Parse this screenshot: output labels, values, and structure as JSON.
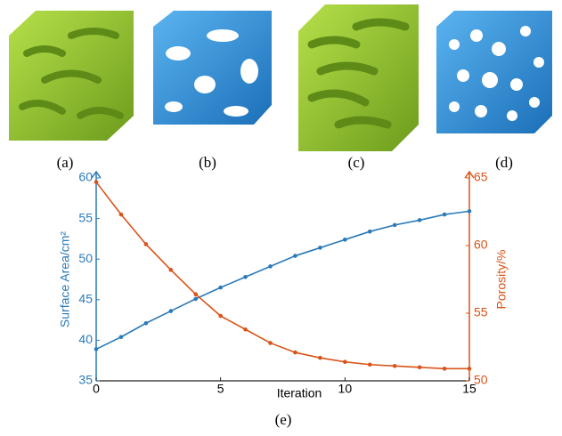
{
  "panels": [
    {
      "label": "(a)"
    },
    {
      "label": "(b)"
    },
    {
      "label": "(c)"
    },
    {
      "label": "(d)"
    }
  ],
  "caption": "(e)",
  "chart_data": {
    "type": "line",
    "x_label": "Iteration",
    "y_label": "Surface Area/cm²",
    "y2_label": "Porosity/%",
    "x": [
      0,
      1,
      2,
      3,
      4,
      5,
      6,
      7,
      8,
      9,
      10,
      11,
      12,
      13,
      14,
      15
    ],
    "series": [
      {
        "color": "#2a7ab9",
        "values": [
          38.9,
          40.4,
          42.1,
          43.6,
          45.1,
          46.5,
          47.8,
          49.1,
          50.4,
          51.4,
          52.4,
          53.4,
          54.2,
          54.8,
          55.5,
          55.9
        ]
      },
      {
        "color": "#d9541a",
        "axis": "y2",
        "values": [
          64.7,
          62.3,
          60.1,
          58.2,
          56.4,
          54.8,
          53.8,
          52.8,
          52.1,
          51.7,
          51.4,
          51.2,
          51.1,
          51.0,
          50.9,
          50.9
        ]
      }
    ],
    "xlim": [
      0,
      15
    ],
    "xticks": [
      0,
      5,
      10,
      15
    ],
    "ylim": [
      35,
      60
    ],
    "yticks": [
      35,
      40,
      45,
      50,
      55,
      60
    ],
    "y2lim": [
      50,
      65
    ],
    "y2ticks": [
      50,
      55,
      60,
      65
    ]
  }
}
